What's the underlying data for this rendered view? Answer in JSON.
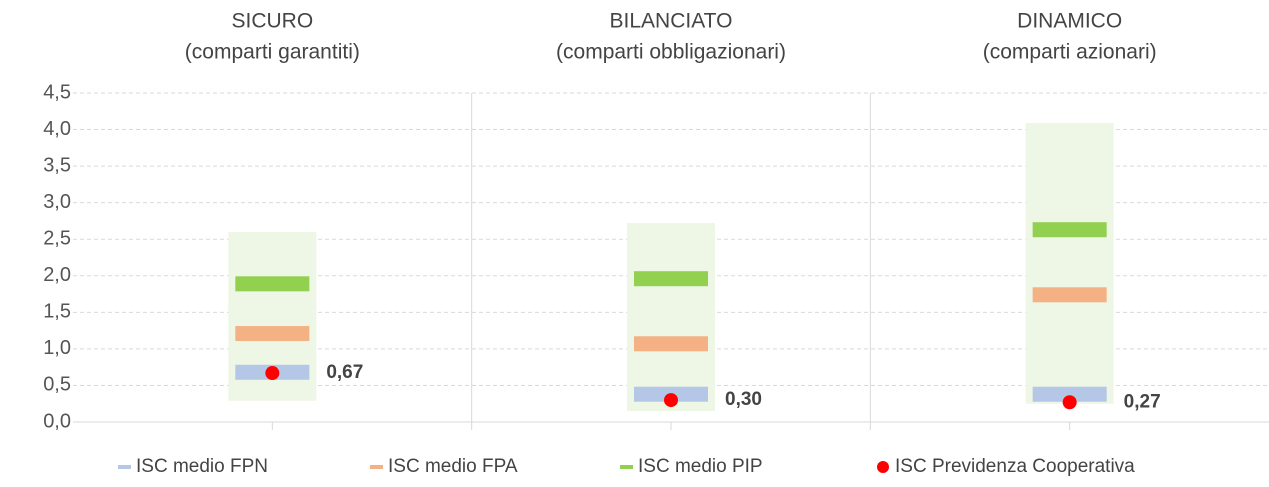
{
  "chart_data": {
    "type": "range-dot",
    "categories": [
      {
        "name": "SICURO",
        "detail": "(comparti garantiti)"
      },
      {
        "name": "BILANCIATO",
        "detail": "(comparti obbligazionari)"
      },
      {
        "name": "DINAMICO",
        "detail": "(comparti azionari)"
      }
    ],
    "ranges": [
      {
        "low": 0.29,
        "high": 2.6
      },
      {
        "low": 0.15,
        "high": 2.72
      },
      {
        "low": 0.25,
        "high": 4.09
      }
    ],
    "range_color": "#eef6e6",
    "series": [
      {
        "name": "ISC medio FPN",
        "color": "#b4c7e7",
        "marker": "bar",
        "values": [
          0.68,
          0.38,
          0.38
        ]
      },
      {
        "name": "ISC medio FPA",
        "color": "#f4b183",
        "marker": "bar",
        "values": [
          1.21,
          1.07,
          1.74
        ]
      },
      {
        "name": "ISC medio PIP",
        "color": "#92d050",
        "marker": "bar",
        "values": [
          1.89,
          1.96,
          2.63
        ]
      },
      {
        "name": "ISC Previdenza Cooperativa",
        "color": "#ff0000",
        "marker": "dot",
        "values": [
          0.67,
          0.3,
          0.27
        ],
        "value_labels": [
          "0,67",
          "0,30",
          "0,27"
        ]
      }
    ],
    "ylim": [
      0,
      4.5
    ],
    "yticks": [
      {
        "value": 0,
        "label": "0,0"
      },
      {
        "value": 0.5,
        "label": "0,5"
      },
      {
        "value": 1,
        "label": "1,0"
      },
      {
        "value": 1.5,
        "label": "1,5"
      },
      {
        "value": 2,
        "label": "2,0"
      },
      {
        "value": 2.5,
        "label": "2,5"
      },
      {
        "value": 3,
        "label": "3,0"
      },
      {
        "value": 3.5,
        "label": "3,5"
      },
      {
        "value": 4,
        "label": "4,0"
      },
      {
        "value": 4.5,
        "label": "4,5"
      }
    ],
    "grid": true
  }
}
